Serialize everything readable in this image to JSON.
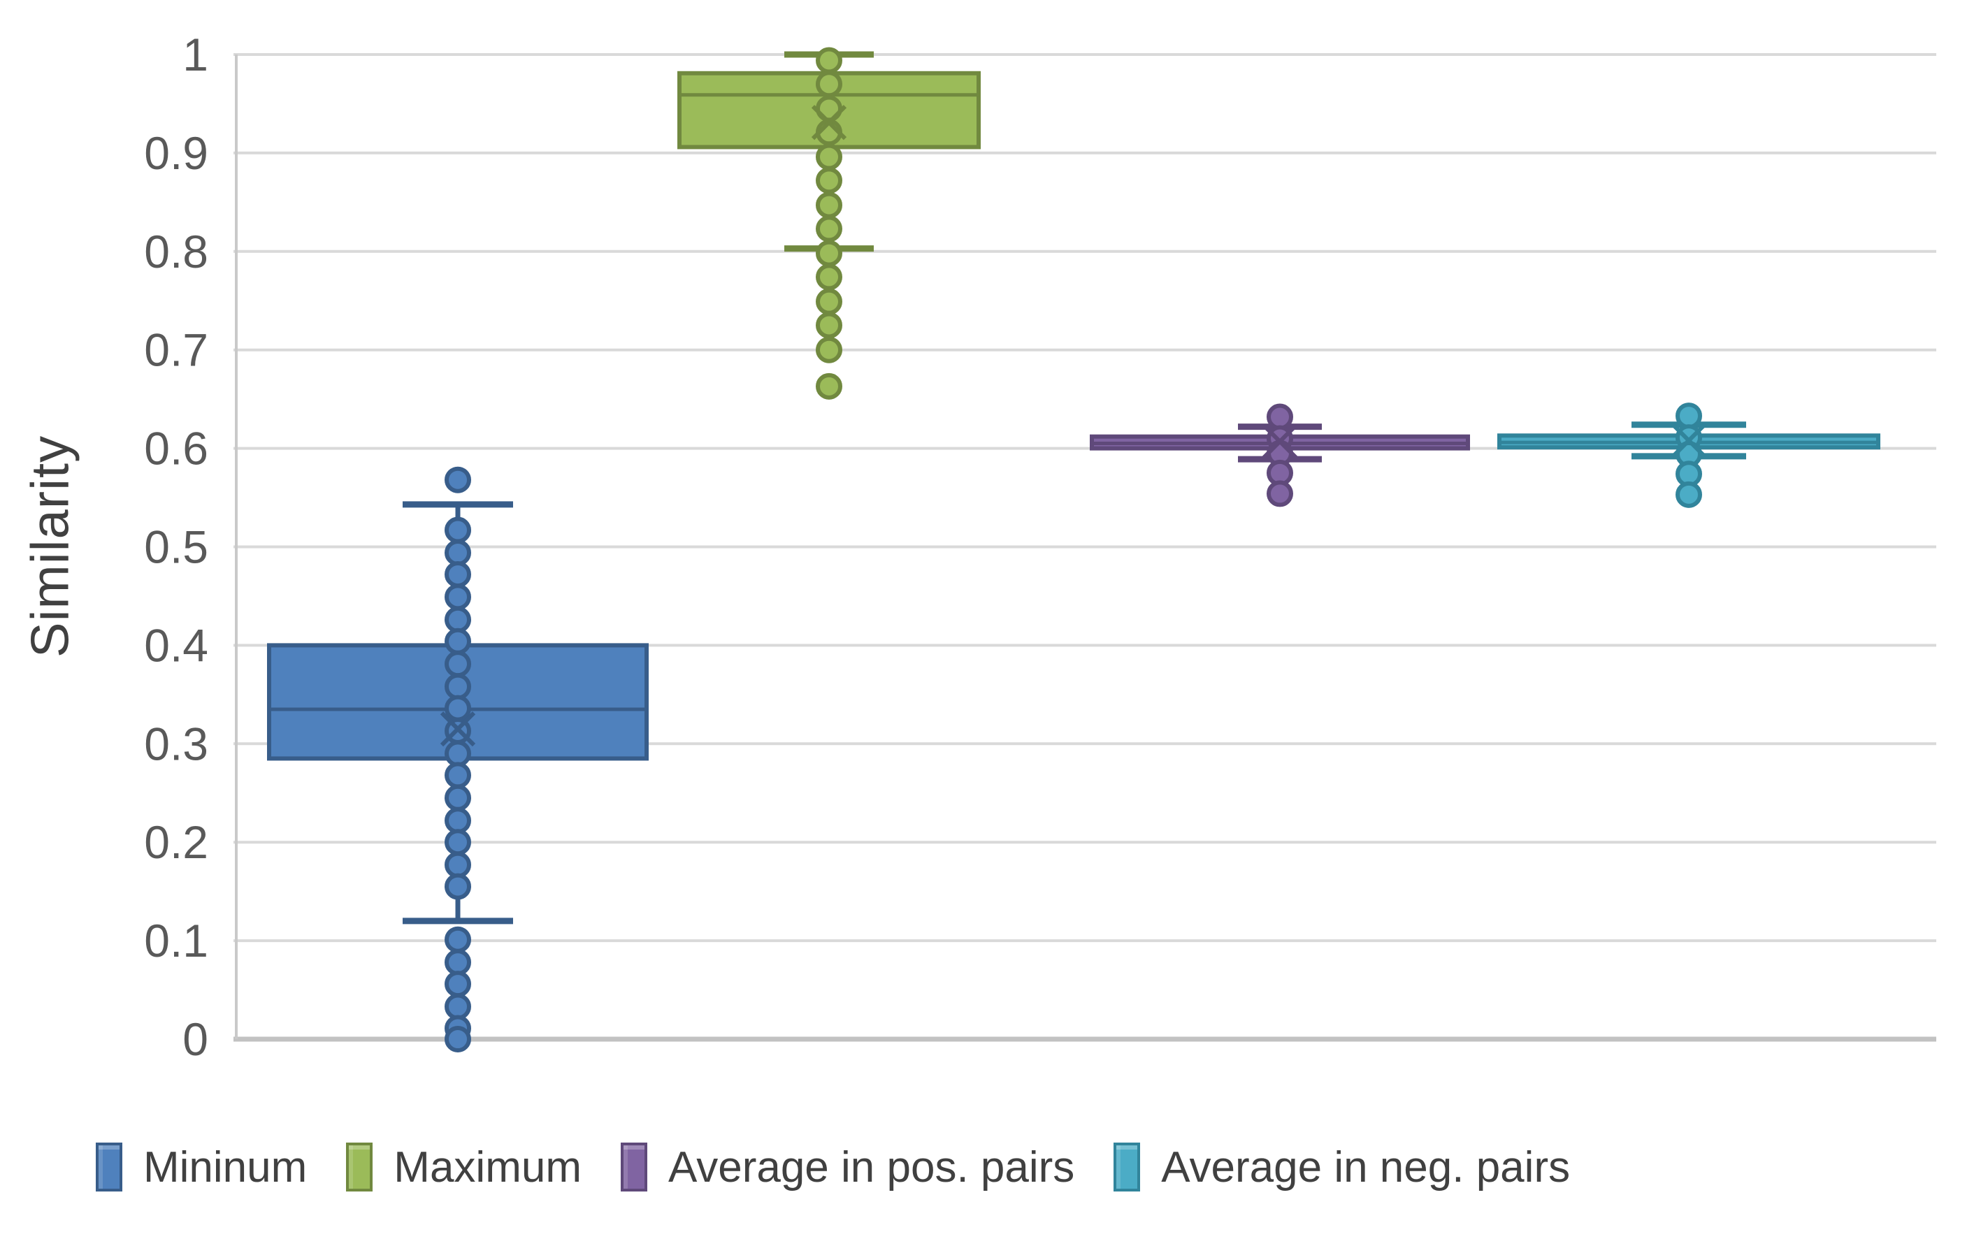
{
  "chart_data": {
    "type": "boxplot",
    "title": "",
    "ylabel": "Similarity",
    "ylim": [
      0,
      1
    ],
    "grid": true,
    "legend_position": "bottom",
    "yticks": [
      {
        "label": "1",
        "value": 1.0
      },
      {
        "label": "0.9",
        "value": 0.9
      },
      {
        "label": "0.8",
        "value": 0.8
      },
      {
        "label": "0.7",
        "value": 0.7
      },
      {
        "label": "0.6",
        "value": 0.6
      },
      {
        "label": "0.5",
        "value": 0.5
      },
      {
        "label": "0.4",
        "value": 0.4
      },
      {
        "label": "0.3",
        "value": 0.3
      },
      {
        "label": "0.2",
        "value": 0.2
      },
      {
        "label": "0.1",
        "value": 0.1
      },
      {
        "label": "0",
        "value": 0.0
      }
    ],
    "series": [
      {
        "name": "Mininum",
        "fill": "#4F81BD",
        "stroke": "#385D8A",
        "box": {
          "whisker_low": 0.12,
          "q1": 0.285,
          "median": 0.335,
          "mean": 0.315,
          "q3": 0.4,
          "whisker_high": 0.543
        },
        "outliers": [
          0.568,
          0.517,
          0.494,
          0.472,
          0.449,
          0.426,
          0.404,
          0.381,
          0.358,
          0.336,
          0.313,
          0.29,
          0.268,
          0.245,
          0.222,
          0.2,
          0.177,
          0.155,
          0.101,
          0.078,
          0.056,
          0.033,
          0.011,
          0.0
        ]
      },
      {
        "name": "Maximum",
        "fill": "#9BBB59",
        "stroke": "#71893F",
        "box": {
          "whisker_low": 0.803,
          "q1": 0.906,
          "median": 0.959,
          "mean": 0.931,
          "q3": 0.981,
          "whisker_high": 1.0
        },
        "outliers": [
          0.994,
          0.97,
          0.945,
          0.921,
          0.896,
          0.872,
          0.847,
          0.823,
          0.798,
          0.774,
          0.749,
          0.725,
          0.7,
          0.663
        ]
      },
      {
        "name": "Average in pos. pairs",
        "fill": "#8064A2",
        "stroke": "#5F497A",
        "box": {
          "whisker_low": 0.589,
          "q1": 0.6,
          "median": 0.605,
          "mean": 0.607,
          "q3": 0.612,
          "whisker_high": 0.622
        },
        "outliers": [
          0.632,
          0.61,
          0.595,
          0.575,
          0.554
        ]
      },
      {
        "name": "Average in neg. pairs",
        "fill": "#4BACC6",
        "stroke": "#31849B",
        "box": {
          "whisker_low": 0.592,
          "q1": 0.601,
          "median": 0.606,
          "mean": 0.608,
          "q3": 0.613,
          "whisker_high": 0.624
        },
        "outliers": [
          0.633,
          0.611,
          0.594,
          0.574,
          0.553
        ]
      }
    ]
  }
}
